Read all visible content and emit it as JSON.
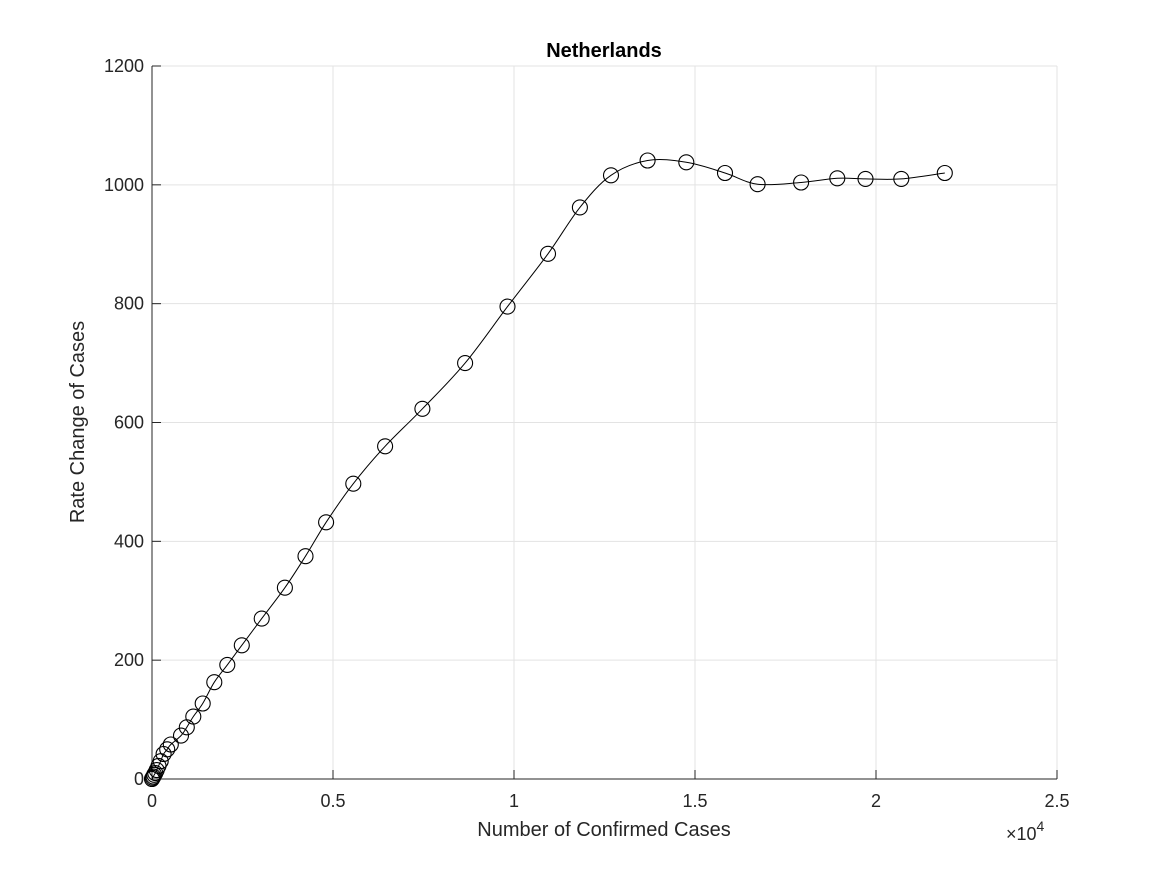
{
  "chart_data": {
    "type": "line",
    "title": "Netherlands",
    "xlabel": "Number of Confirmed Cases",
    "ylabel": "Rate Change of Cases",
    "x_multiplier": "×10",
    "x_exponent": "4",
    "xlim": [
      0,
      25000
    ],
    "ylim": [
      0,
      1200
    ],
    "x_ticks": [
      0,
      5000,
      10000,
      15000,
      20000,
      25000
    ],
    "x_tick_labels": [
      "0",
      "0.5",
      "1",
      "1.5",
      "2",
      "2.5"
    ],
    "y_ticks": [
      0,
      200,
      400,
      600,
      800,
      1000,
      1200
    ],
    "y_tick_labels": [
      "0",
      "200",
      "400",
      "600",
      "800",
      "1000",
      "1200"
    ],
    "grid": true,
    "marker": "open-circle",
    "line_color": "#000000",
    "series": [
      {
        "x": [
          0,
          20,
          40,
          60,
          90,
          130,
          180,
          240,
          320,
          420,
          520,
          800,
          960,
          1140,
          1400,
          1720,
          2080,
          2480,
          3030,
          3670,
          4240,
          4810,
          5560,
          6440,
          7470,
          8650,
          9820,
          10940,
          11820,
          12680,
          13690,
          14760,
          15830,
          16730,
          17930,
          18930,
          19710,
          20700,
          21900
        ],
        "y": [
          0,
          2,
          4,
          7,
          10,
          15,
          22,
          30,
          42,
          50,
          58,
          73,
          87,
          105,
          127,
          163,
          192,
          225,
          270,
          322,
          375,
          432,
          497,
          560,
          623,
          700,
          795,
          884,
          962,
          1016,
          1041,
          1038,
          1020,
          1001,
          1004,
          1011,
          1010,
          1010,
          1020
        ]
      }
    ]
  }
}
